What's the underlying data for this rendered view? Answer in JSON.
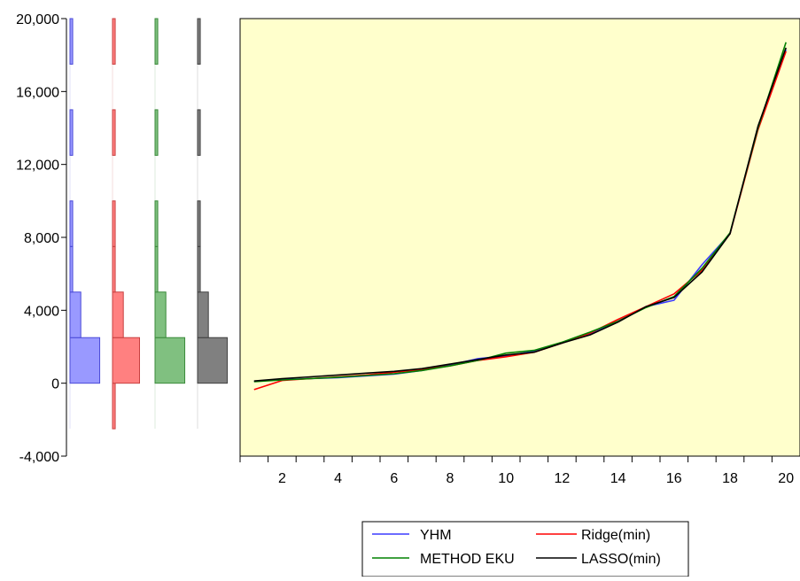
{
  "chart_data": {
    "type": "line",
    "title": "",
    "xlabel": "",
    "ylabel": "",
    "plot_background": "#ffffcc",
    "y_axis": {
      "range": [
        -4000,
        20000
      ],
      "ticks": [
        -4000,
        0,
        4000,
        8000,
        12000,
        16000,
        20000
      ],
      "tick_labels": [
        "-4,000",
        "0",
        "4,000",
        "8,000",
        "12,000",
        "16,000",
        "20,000"
      ]
    },
    "x_axis": {
      "range": [
        0.5,
        20.5
      ],
      "ticks": [
        2,
        4,
        6,
        8,
        10,
        12,
        14,
        16,
        18,
        20
      ],
      "tick_labels": [
        "2",
        "4",
        "6",
        "8",
        "10",
        "12",
        "14",
        "16",
        "18",
        "20"
      ]
    },
    "x": [
      1,
      2,
      3,
      4,
      5,
      6,
      7,
      8,
      9,
      10,
      11,
      12,
      13,
      14,
      15,
      16,
      17,
      18,
      19,
      20
    ],
    "series": [
      {
        "name": "YHM",
        "color": "#3b3bff",
        "values": [
          100,
          200,
          250,
          300,
          400,
          500,
          700,
          1000,
          1350,
          1500,
          1750,
          2200,
          2700,
          3400,
          4200,
          4550,
          6500,
          8200,
          14000,
          18300
        ]
      },
      {
        "name": "Ridge(min)",
        "color": "#ff0000",
        "values": [
          -350,
          150,
          250,
          350,
          450,
          600,
          750,
          950,
          1250,
          1450,
          1700,
          2200,
          2750,
          3500,
          4200,
          4900,
          6200,
          8200,
          13900,
          18200
        ]
      },
      {
        "name": "METHOD EKU",
        "color": "#008000",
        "values": [
          80,
          180,
          250,
          330,
          420,
          520,
          700,
          950,
          1250,
          1650,
          1800,
          2250,
          2800,
          3400,
          4150,
          4750,
          6300,
          8250,
          14000,
          18700
        ]
      },
      {
        "name": "LASSO(min)",
        "color": "#000000",
        "values": [
          120,
          250,
          350,
          450,
          550,
          650,
          800,
          1050,
          1300,
          1550,
          1700,
          2200,
          2650,
          3350,
          4200,
          4700,
          6100,
          8200,
          14100,
          18400
        ]
      }
    ],
    "histograms": {
      "bin_edges": [
        -2500,
        0,
        2500,
        5000,
        7500,
        10000,
        12500,
        15000,
        17500,
        20000
      ],
      "counts": [
        {
          "series": "YHM",
          "color": "#9999ff",
          "edge": "#4a4ad8",
          "values": [
            0,
            11,
            4,
            1,
            1,
            0,
            1,
            0,
            1
          ]
        },
        {
          "series": "Ridge(min)",
          "color": "#ff8080",
          "edge": "#c84040",
          "values": [
            1,
            10,
            4,
            1,
            1,
            0,
            1,
            0,
            1
          ]
        },
        {
          "series": "METHOD EKU",
          "color": "#80c080",
          "edge": "#3a8a3a",
          "values": [
            0,
            11,
            4,
            1,
            1,
            0,
            1,
            0,
            1
          ]
        },
        {
          "series": "LASSO(min)",
          "color": "#808080",
          "edge": "#404040",
          "values": [
            0,
            11,
            4,
            1,
            1,
            0,
            1,
            0,
            1
          ]
        }
      ]
    },
    "legend": {
      "placement": "bottom",
      "entries": [
        {
          "label": "YHM",
          "color": "#3b3bff"
        },
        {
          "label": "Ridge(min)",
          "color": "#ff0000"
        },
        {
          "label": "METHOD EKU",
          "color": "#008000"
        },
        {
          "label": "LASSO(min)",
          "color": "#000000"
        }
      ]
    }
  }
}
